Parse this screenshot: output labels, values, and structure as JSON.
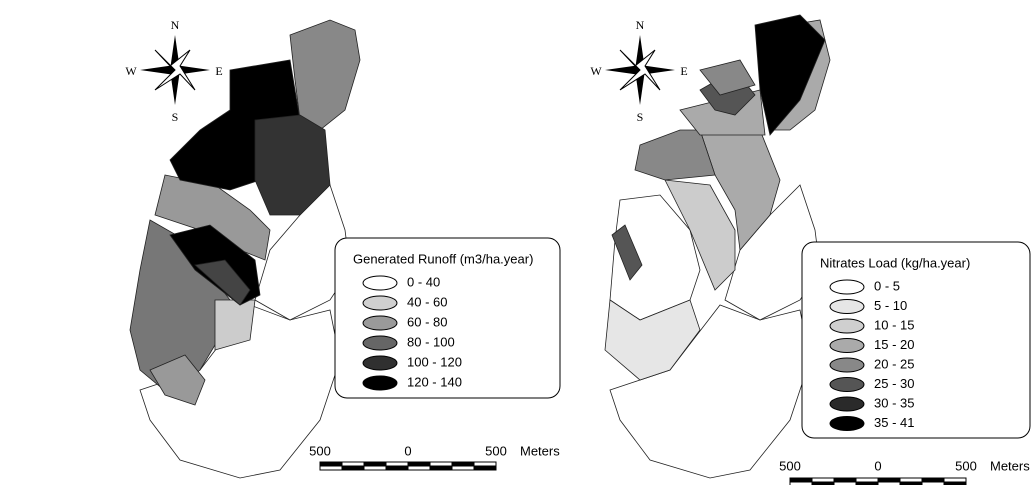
{
  "maps": [
    {
      "compass": {
        "n": "N",
        "s": "S",
        "w": "W",
        "e": "E"
      },
      "legend": {
        "title": "Generated Runoff (m3/ha.year)",
        "classes": [
          {
            "label": "0 - 40",
            "color": "#ffffff"
          },
          {
            "label": "40 - 60",
            "color": "#d0d0d0"
          },
          {
            "label": "60 - 80",
            "color": "#9a9a9a"
          },
          {
            "label": "80 - 100",
            "color": "#666666"
          },
          {
            "label": "100 - 120",
            "color": "#303030"
          },
          {
            "label": "120 - 140",
            "color": "#000000"
          }
        ]
      },
      "scale": {
        "labels": [
          "500",
          "0",
          "500"
        ],
        "unit": "Meters"
      }
    },
    {
      "compass": {
        "n": "N",
        "s": "S",
        "w": "W",
        "e": "E"
      },
      "legend": {
        "title": "Nitrates Load (kg/ha.year)",
        "classes": [
          {
            "label": "0 - 5",
            "color": "#ffffff"
          },
          {
            "label": "5 - 10",
            "color": "#e6e6e6"
          },
          {
            "label": "10 - 15",
            "color": "#cfcfcf"
          },
          {
            "label": "15 - 20",
            "color": "#aaaaaa"
          },
          {
            "label": "20 - 25",
            "color": "#888888"
          },
          {
            "label": "25 - 30",
            "color": "#555555"
          },
          {
            "label": "30 - 35",
            "color": "#2a2a2a"
          },
          {
            "label": "35 - 41",
            "color": "#000000"
          }
        ]
      },
      "scale": {
        "labels": [
          "500",
          "0",
          "500"
        ],
        "unit": "Meters"
      }
    }
  ]
}
